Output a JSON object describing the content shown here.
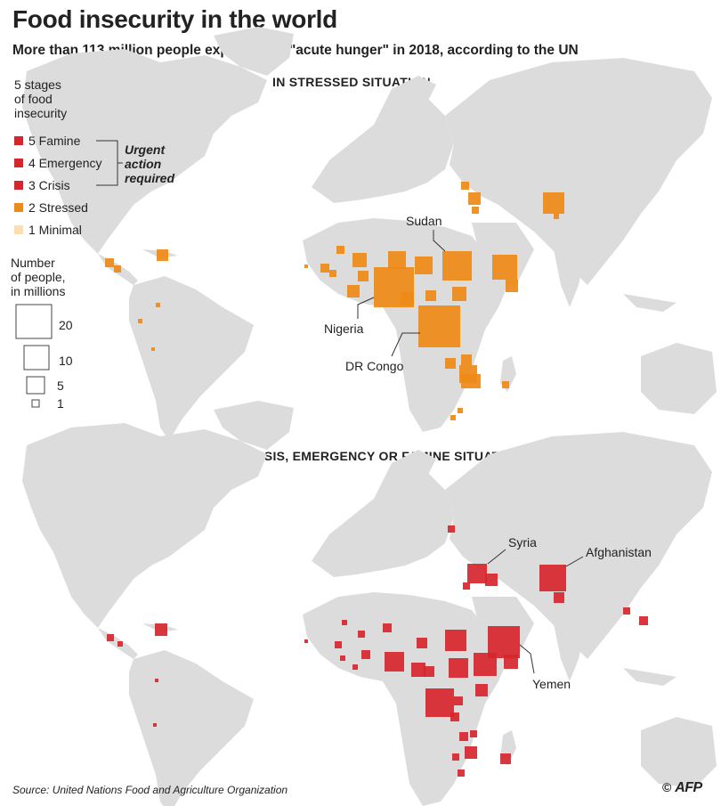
{
  "title": "Food insecurity in the world",
  "subtitle": "More than 113 million people experienced \"acute hunger\" in 2018, according to the UN",
  "colors": {
    "land": "#dcdcdc",
    "famine": "#d6262c",
    "emergency": "#d6262c",
    "crisis": "#d6262c",
    "stressed": "#ee8a17",
    "minimal": "#fbdfae"
  },
  "legend": {
    "stages_title": [
      "5 stages",
      "of food",
      "insecurity"
    ],
    "stages": [
      {
        "label": "5 Famine",
        "color": "#d6262c"
      },
      {
        "label": "4 Emergency",
        "color": "#d6262c"
      },
      {
        "label": "3 Crisis",
        "color": "#d6262c"
      },
      {
        "label": "2 Stressed",
        "color": "#ee8a17"
      },
      {
        "label": "1 Minimal",
        "color": "#fbdfae"
      }
    ],
    "urgent_label": [
      "Urgent",
      "action",
      "required"
    ],
    "size_title": [
      "Number",
      "of people,",
      "in millions"
    ],
    "sizes": [
      {
        "label": "20",
        "value": 20
      },
      {
        "label": "10",
        "value": 10
      },
      {
        "label": "5",
        "value": 5
      },
      {
        "label": "1",
        "value": 1
      }
    ]
  },
  "panels": [
    {
      "label": "In Stressed situation",
      "label_display": "IN STRESSED SITUATION",
      "color": "#ee8a17",
      "annotations": [
        "Sudan",
        "Nigeria",
        "DR Congo"
      ]
    },
    {
      "label": "In crisis, emergency or famine situations",
      "label_display": "IN CRISIS, EMERGENCY OR FAMINE SITUATIONS",
      "color": "#d6262c",
      "annotations": [
        "Syria",
        "Afghanistan",
        "Yemen"
      ]
    }
  ],
  "source": "Source: United Nations Food and Agriculture Organization",
  "credit": {
    "symbol": "©",
    "name": "AFP"
  }
}
